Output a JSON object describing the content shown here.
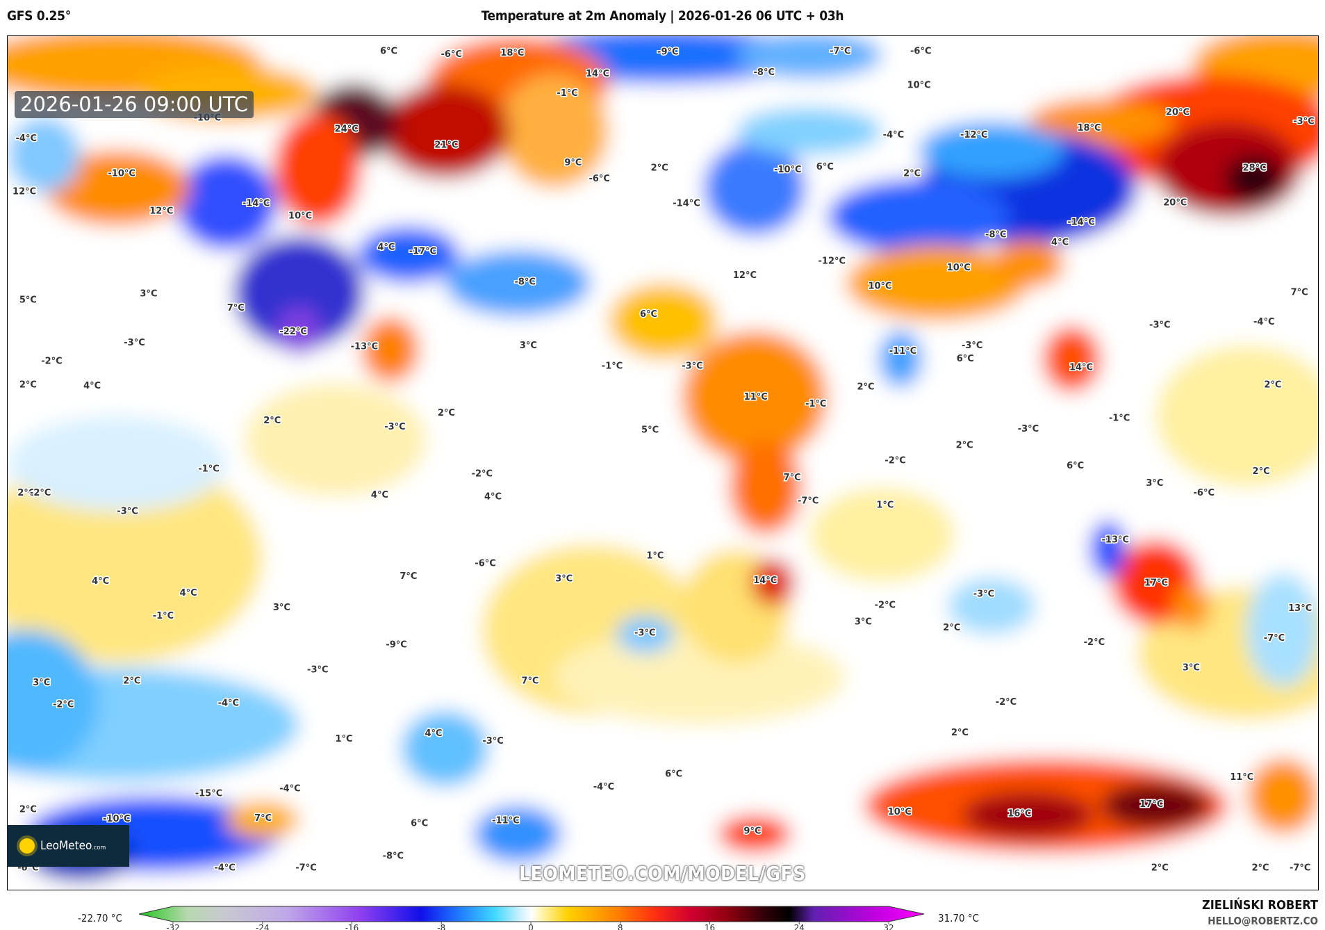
{
  "header": {
    "model": "GFS 0.25°",
    "title": "Temperature at 2m Anomaly | 2026-01-26 06 UTC + 03h"
  },
  "map": {
    "valid_time": "2026-01-26 09:00 UTC",
    "projection": "world, longitude -180 to 180",
    "unit": "°C",
    "watermark": "LEOMETEO.COM/MODEL/GFS",
    "logo_text": "LeoMeteo",
    "logo_suffix": ".com",
    "labels": [
      {
        "t": "6°C",
        "lon": -75.4,
        "lat": 86.3
      },
      {
        "t": "-6°C",
        "lon": -58.2,
        "lat": 85.6
      },
      {
        "t": "18°C",
        "lon": -41.5,
        "lat": 85.9
      },
      {
        "t": "-9°C",
        "lon": 1.2,
        "lat": 86.1
      },
      {
        "t": "-7°C",
        "lon": 48.5,
        "lat": 86.3
      },
      {
        "t": "-6°C",
        "lon": 70.6,
        "lat": 86.3
      },
      {
        "t": "-8°C",
        "lon": 27.6,
        "lat": 81.8
      },
      {
        "t": "14°C",
        "lon": -18.1,
        "lat": 81.5
      },
      {
        "t": "10°C",
        "lon": 70.1,
        "lat": 79.1
      },
      {
        "t": "-1°C",
        "lon": -26.4,
        "lat": 77.4
      },
      {
        "t": "-10°C",
        "lon": -125.2,
        "lat": 72.2
      },
      {
        "t": "24°C",
        "lon": -87.0,
        "lat": 69.9
      },
      {
        "t": "21°C",
        "lon": -59.6,
        "lat": 66.5
      },
      {
        "t": "20°C",
        "lon": 141.1,
        "lat": 73.4
      },
      {
        "t": "18°C",
        "lon": 116.8,
        "lat": 70.1
      },
      {
        "t": "-3°C",
        "lon": 175.7,
        "lat": 71.5
      },
      {
        "t": "-12°C",
        "lon": 85.2,
        "lat": 68.6
      },
      {
        "t": "-4°C",
        "lon": 63.1,
        "lat": 68.6
      },
      {
        "t": "-4°C",
        "lon": -174.9,
        "lat": 67.9
      },
      {
        "t": "-10°C",
        "lon": -148.7,
        "lat": 60.5
      },
      {
        "t": "9°C",
        "lon": -24.8,
        "lat": 62.8
      },
      {
        "t": "2°C",
        "lon": -1.1,
        "lat": 61.7
      },
      {
        "t": "-6°C",
        "lon": -17.6,
        "lat": 59.4
      },
      {
        "t": "-10°C",
        "lon": 34.1,
        "lat": 61.3
      },
      {
        "t": "6°C",
        "lon": 44.3,
        "lat": 61.9
      },
      {
        "t": "2°C",
        "lon": 68.2,
        "lat": 60.5
      },
      {
        "t": "28°C",
        "lon": 162.2,
        "lat": 61.7
      },
      {
        "t": "12°C",
        "lon": -175.4,
        "lat": 56.7
      },
      {
        "t": "-14°C",
        "lon": -111.8,
        "lat": 54.2
      },
      {
        "t": "12°C",
        "lon": -137.8,
        "lat": 52.6
      },
      {
        "t": "-14°C",
        "lon": 6.3,
        "lat": 54.2
      },
      {
        "t": "20°C",
        "lon": 140.4,
        "lat": 54.4
      },
      {
        "t": "10°C",
        "lon": -99.7,
        "lat": 51.6
      },
      {
        "t": "-14°C",
        "lon": 114.6,
        "lat": 50.3
      },
      {
        "t": "-8°C",
        "lon": 91.2,
        "lat": 47.6
      },
      {
        "t": "4°C",
        "lon": 108.8,
        "lat": 46.0
      },
      {
        "t": "4°C",
        "lon": -76.1,
        "lat": 45.0
      },
      {
        "t": "-17°C",
        "lon": -66.1,
        "lat": 44.1
      },
      {
        "t": "-12°C",
        "lon": 46.2,
        "lat": 42.1
      },
      {
        "t": "12°C",
        "lon": 22.3,
        "lat": 39.1
      },
      {
        "t": "10°C",
        "lon": 81.0,
        "lat": 40.7
      },
      {
        "t": "10°C",
        "lon": 59.4,
        "lat": 36.8
      },
      {
        "t": "-8°C",
        "lon": -38.0,
        "lat": 37.7
      },
      {
        "t": "5°C",
        "lon": -174.4,
        "lat": 33.9
      },
      {
        "t": "3°C",
        "lon": -141.3,
        "lat": 35.2
      },
      {
        "t": "7°C",
        "lon": 174.5,
        "lat": 35.5
      },
      {
        "t": "7°C",
        "lon": -117.4,
        "lat": 32.2
      },
      {
        "t": "6°C",
        "lon": -4.1,
        "lat": 30.9
      },
      {
        "t": "-22°C",
        "lon": -101.6,
        "lat": 27.2
      },
      {
        "t": "-3°C",
        "lon": -145.2,
        "lat": 24.9
      },
      {
        "t": "-3°C",
        "lon": 136.2,
        "lat": 28.6
      },
      {
        "t": "-4°C",
        "lon": 164.8,
        "lat": 29.3
      },
      {
        "t": "-13°C",
        "lon": -82.1,
        "lat": 24.1
      },
      {
        "t": "3°C",
        "lon": -37.1,
        "lat": 24.3
      },
      {
        "t": "-1°C",
        "lon": -14.1,
        "lat": 20.0
      },
      {
        "t": "-3°C",
        "lon": 7.9,
        "lat": 20.0
      },
      {
        "t": "-3°C",
        "lon": 84.7,
        "lat": 24.3
      },
      {
        "t": "-11°C",
        "lon": 65.7,
        "lat": 23.1
      },
      {
        "t": "6°C",
        "lon": 82.8,
        "lat": 21.5
      },
      {
        "t": "14°C",
        "lon": 114.6,
        "lat": 19.7
      },
      {
        "t": "-2°C",
        "lon": -167.9,
        "lat": 21.0
      },
      {
        "t": "2°C",
        "lon": -174.4,
        "lat": 16.0
      },
      {
        "t": "4°C",
        "lon": -156.8,
        "lat": 15.8
      },
      {
        "t": "11°C",
        "lon": 25.3,
        "lat": 13.5
      },
      {
        "t": "-1°C",
        "lon": 41.8,
        "lat": 12.0
      },
      {
        "t": "2°C",
        "lon": 55.5,
        "lat": 15.6
      },
      {
        "t": "2°C",
        "lon": 167.2,
        "lat": 16.0
      },
      {
        "t": "2°C",
        "lon": -107.4,
        "lat": 8.5
      },
      {
        "t": "2°C",
        "lon": -59.6,
        "lat": 10.1
      },
      {
        "t": "-3°C",
        "lon": -73.7,
        "lat": 7.2
      },
      {
        "t": "-1°C",
        "lon": 125.1,
        "lat": 9.0
      },
      {
        "t": "5°C",
        "lon": -3.7,
        "lat": 6.5
      },
      {
        "t": "-3°C",
        "lon": 100.1,
        "lat": 6.7
      },
      {
        "t": "2°C",
        "lon": 82.6,
        "lat": 3.3
      },
      {
        "t": "-2°C",
        "lon": 63.6,
        "lat": 0.1
      },
      {
        "t": "6°C",
        "lon": 113.0,
        "lat": -1.0
      },
      {
        "t": "-1°C",
        "lon": -124.8,
        "lat": -1.7
      },
      {
        "t": "-2°C",
        "lon": -49.8,
        "lat": -2.7
      },
      {
        "t": "7°C",
        "lon": 35.3,
        "lat": -3.5
      },
      {
        "t": "2°C",
        "lon": 164.0,
        "lat": -2.2
      },
      {
        "t": "2°C",
        "lon": -174.9,
        "lat": -6.7
      },
      {
        "t": "-2°C",
        "lon": -171.0,
        "lat": -6.7
      },
      {
        "t": "4°C",
        "lon": -77.9,
        "lat": -7.2
      },
      {
        "t": "4°C",
        "lon": -46.8,
        "lat": -7.5
      },
      {
        "t": "3°C",
        "lon": 134.8,
        "lat": -4.7
      },
      {
        "t": "-6°C",
        "lon": 148.3,
        "lat": -6.7
      },
      {
        "t": "-7°C",
        "lon": 39.7,
        "lat": -8.4
      },
      {
        "t": "1°C",
        "lon": 60.8,
        "lat": -9.3
      },
      {
        "t": "-3°C",
        "lon": -147.1,
        "lat": -10.6
      },
      {
        "t": "-13°C",
        "lon": 124.0,
        "lat": -16.6
      },
      {
        "t": "-6°C",
        "lon": -48.9,
        "lat": -21.6
      },
      {
        "t": "1°C",
        "lon": -2.3,
        "lat": -20.0
      },
      {
        "t": "7°C",
        "lon": -70.0,
        "lat": -24.3
      },
      {
        "t": "3°C",
        "lon": -27.3,
        "lat": -24.8
      },
      {
        "t": "14°C",
        "lon": 27.9,
        "lat": -25.2
      },
      {
        "t": "17°C",
        "lon": 135.2,
        "lat": -25.7
      },
      {
        "t": "4°C",
        "lon": -154.5,
        "lat": -25.3
      },
      {
        "t": "4°C",
        "lon": -130.4,
        "lat": -27.8
      },
      {
        "t": "-3°C",
        "lon": 87.9,
        "lat": -28.0
      },
      {
        "t": "3°C",
        "lon": -104.8,
        "lat": -30.9
      },
      {
        "t": "-2°C",
        "lon": 60.8,
        "lat": -30.4
      },
      {
        "t": "13°C",
        "lon": 174.7,
        "lat": -31.0
      },
      {
        "t": "-1°C",
        "lon": -137.3,
        "lat": -32.6
      },
      {
        "t": "3°C",
        "lon": 54.8,
        "lat": -33.9
      },
      {
        "t": "2°C",
        "lon": 79.1,
        "lat": -35.1
      },
      {
        "t": "-3°C",
        "lon": -5.1,
        "lat": -36.2
      },
      {
        "t": "-7°C",
        "lon": 167.6,
        "lat": -37.3
      },
      {
        "t": "-2°C",
        "lon": 118.2,
        "lat": -38.2
      },
      {
        "t": "-9°C",
        "lon": -73.3,
        "lat": -38.7
      },
      {
        "t": "3°C",
        "lon": 144.8,
        "lat": -43.5
      },
      {
        "t": "-3°C",
        "lon": -94.9,
        "lat": -44.0
      },
      {
        "t": "3°C",
        "lon": -170.7,
        "lat": -46.7
      },
      {
        "t": "2°C",
        "lon": -145.9,
        "lat": -46.3
      },
      {
        "t": "7°C",
        "lon": -36.6,
        "lat": -46.3
      },
      {
        "t": "-2°C",
        "lon": -164.7,
        "lat": -51.3
      },
      {
        "t": "-4°C",
        "lon": -119.4,
        "lat": -51.0
      },
      {
        "t": "-2°C",
        "lon": 94.0,
        "lat": -50.8
      },
      {
        "t": "2°C",
        "lon": 81.3,
        "lat": -57.2
      },
      {
        "t": "4°C",
        "lon": -63.1,
        "lat": -57.4
      },
      {
        "t": "1°C",
        "lon": -87.7,
        "lat": -58.5
      },
      {
        "t": "-3°C",
        "lon": -46.8,
        "lat": -59.0
      },
      {
        "t": "6°C",
        "lon": 2.8,
        "lat": -65.9
      },
      {
        "t": "-4°C",
        "lon": -16.4,
        "lat": -68.6
      },
      {
        "t": "-15°C",
        "lon": -124.8,
        "lat": -70.0
      },
      {
        "t": "-4°C",
        "lon": -102.5,
        "lat": -69.0
      },
      {
        "t": "11°C",
        "lon": 158.7,
        "lat": -66.6
      },
      {
        "t": "17°C",
        "lon": 133.9,
        "lat": -72.3
      },
      {
        "t": "16°C",
        "lon": 97.7,
        "lat": -74.3
      },
      {
        "t": "10°C",
        "lon": 64.8,
        "lat": -73.9
      },
      {
        "t": "2°C",
        "lon": -174.4,
        "lat": -73.4
      },
      {
        "t": "-10°C",
        "lon": -150.1,
        "lat": -75.4
      },
      {
        "t": "7°C",
        "lon": -109.9,
        "lat": -75.2
      },
      {
        "t": "6°C",
        "lon": -67.0,
        "lat": -76.3
      },
      {
        "t": "-11°C",
        "lon": -43.3,
        "lat": -75.7
      },
      {
        "t": "9°C",
        "lon": 24.4,
        "lat": -77.9
      },
      {
        "t": "-6°C",
        "lon": -174.4,
        "lat": -85.7
      },
      {
        "t": "-4°C",
        "lon": -120.4,
        "lat": -85.7
      },
      {
        "t": "-7°C",
        "lon": -98.1,
        "lat": -85.7
      },
      {
        "t": "-8°C",
        "lon": -74.2,
        "lat": -83.2
      },
      {
        "t": "2°C",
        "lon": 136.2,
        "lat": -85.7
      },
      {
        "t": "2°C",
        "lon": 163.8,
        "lat": -85.7
      },
      {
        "t": "-7°C",
        "lon": 174.7,
        "lat": -85.7
      }
    ]
  },
  "colorbar": {
    "min_label": "-22.70 °C",
    "max_label": "31.70 °C",
    "range": [
      -32,
      32
    ],
    "ticks": [
      "-32",
      "-24",
      "-16",
      "-8",
      "0",
      "8",
      "16",
      "24",
      "32"
    ],
    "stops": [
      {
        "v": -32,
        "c": "#22c81e"
      },
      {
        "v": -28,
        "c": "#b8d8b0"
      },
      {
        "v": -25,
        "c": "#c8c8d0"
      },
      {
        "v": -20,
        "c": "#c0a8e8"
      },
      {
        "v": -14,
        "c": "#9040f0"
      },
      {
        "v": -9,
        "c": "#1010e8"
      },
      {
        "v": -6,
        "c": "#1e78ff"
      },
      {
        "v": -3,
        "c": "#40d8ff"
      },
      {
        "v": -1,
        "c": "#c8f0ff"
      },
      {
        "v": 0,
        "c": "#ffffff"
      },
      {
        "v": 1,
        "c": "#fff2a0"
      },
      {
        "v": 3,
        "c": "#ffd000"
      },
      {
        "v": 7,
        "c": "#ff8000"
      },
      {
        "v": 10,
        "c": "#ff3010"
      },
      {
        "v": 13,
        "c": "#d00030"
      },
      {
        "v": 16,
        "c": "#900010"
      },
      {
        "v": 19,
        "c": "#300008"
      },
      {
        "v": 21,
        "c": "#000000"
      },
      {
        "v": 23,
        "c": "#6020b0"
      },
      {
        "v": 28,
        "c": "#c000e0"
      },
      {
        "v": 32,
        "c": "#ff00ff"
      }
    ]
  },
  "footer": {
    "author": "ZIELIŃSKI ROBERT",
    "email": "HELLO@ROBERTZ.CO"
  }
}
